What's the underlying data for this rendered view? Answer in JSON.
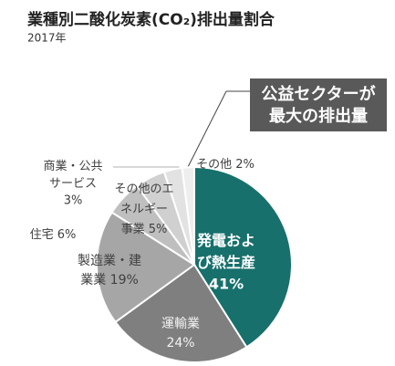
{
  "chart_data": {
    "type": "pie",
    "title": "業種別二酸化炭素(CO₂)排出量割合",
    "subtitle": "2017年",
    "annotation": [
      "公益セクターが",
      "最大の排出量"
    ],
    "categories": [
      [
        "発電およ",
        "び熱生産"
      ],
      [
        "運輸業"
      ],
      [
        "製造業・建",
        "業業"
      ],
      [
        "住宅"
      ],
      [
        "その他のエ",
        "ネルギー",
        "事業"
      ],
      [
        "商業・公共",
        "サービス"
      ],
      [
        "その他"
      ]
    ],
    "values": [
      41,
      24,
      19,
      6,
      5,
      3,
      2
    ],
    "value_labels": [
      "41%",
      "24%",
      "19%",
      "6%",
      "5%",
      "3%",
      "2%"
    ],
    "colors": [
      "#17706b",
      "#7f7f7f",
      "#a6a6a6",
      "#bfbfbf",
      "#d0d0d0",
      "#e2e2e2",
      "#eeeeee"
    ]
  }
}
